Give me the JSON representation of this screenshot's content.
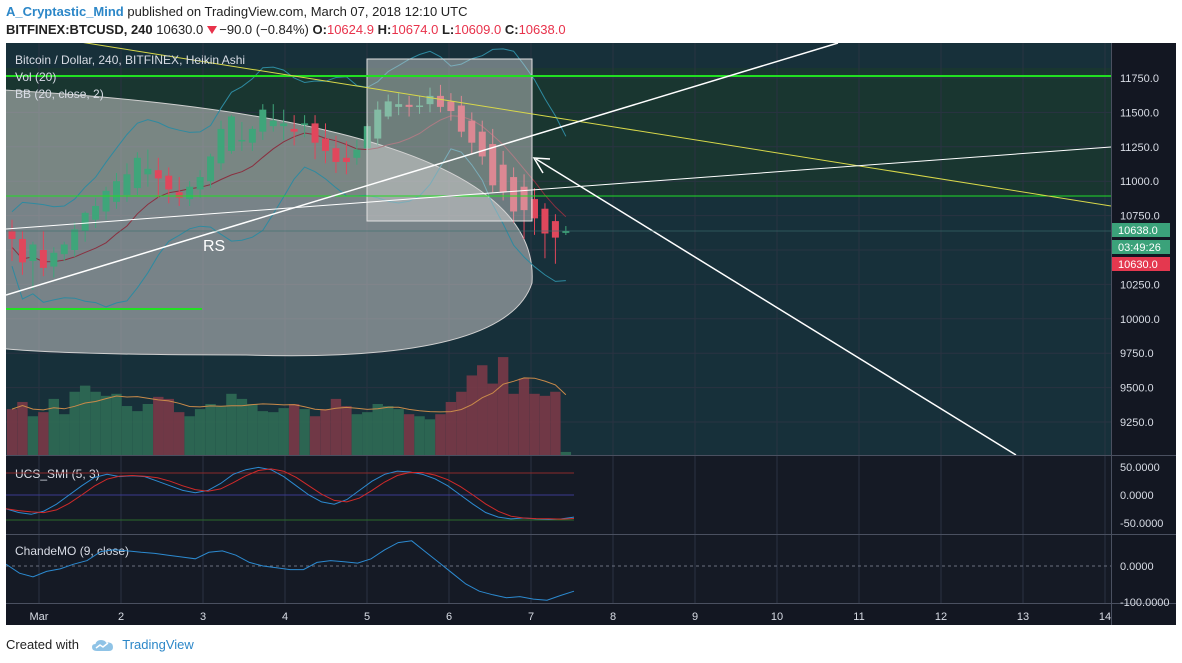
{
  "header": {
    "author": "A_Cryptastic_Mind",
    "published_text": "published on TradingView.com, March 07, 2018 12:10 UTC",
    "symbol": "BITFINEX:BTCUSD, 240",
    "last_price": "10630.0",
    "change": "−90.0 (−0.84%)",
    "o_label": "O:",
    "o_value": "10624.9",
    "h_label": "H:",
    "h_value": "10674.0",
    "l_label": "L:",
    "l_value": "10609.0",
    "c_label": "C:",
    "c_value": "10638.0"
  },
  "legend": {
    "main": "Bitcoin / Dollar, 240, BITFINEX, Heikin Ashi",
    "vol": "Vol (20)",
    "bb": "BB (20, close, 2)",
    "smi": "UCS_SMI (5, 3)",
    "cmo": "ChandeMO (9, close)"
  },
  "annotation": {
    "rs": "RS"
  },
  "price_axis": [
    "11750.0",
    "11500.0",
    "11250.0",
    "11000.0",
    "10750.0",
    "10250.0",
    "10000.0",
    "9750.0",
    "9500.0",
    "9250.0"
  ],
  "price_badges": {
    "close": "10638.0",
    "countdown": "03:49:26",
    "last": "10630.0"
  },
  "smi_axis": [
    "50.0000",
    "0.0000",
    "-50.0000"
  ],
  "cmo_axis": [
    "0.0000",
    "-100.0000"
  ],
  "time_axis": [
    "Mar",
    "2",
    "3",
    "4",
    "5",
    "6",
    "7",
    "8",
    "9",
    "10",
    "11",
    "12",
    "13",
    "14"
  ],
  "colors": {
    "background": "#131722",
    "up": "#3fa57a",
    "down": "#e0475c",
    "green_line": "#21e021",
    "yellow_line": "#d8d84a",
    "badge_green": "#3ba27a",
    "badge_red": "#e4384f"
  },
  "footer": {
    "created_with": "Created with",
    "brand": "TradingView"
  },
  "chart_data": {
    "type": "candlestick",
    "title": "Bitcoin / Dollar, 240, BITFINEX, Heikin Ashi",
    "y_range": [
      9100,
      11950
    ],
    "candles": [
      {
        "o": 10640,
        "h": 10720,
        "c": 10580,
        "l": 10420
      },
      {
        "o": 10580,
        "h": 10640,
        "c": 10410,
        "l": 10320
      },
      {
        "o": 10420,
        "h": 10560,
        "c": 10540,
        "l": 10210
      },
      {
        "o": 10500,
        "h": 10640,
        "c": 10370,
        "l": 10310
      },
      {
        "o": 10380,
        "h": 10520,
        "c": 10480,
        "l": 10300
      },
      {
        "o": 10470,
        "h": 10560,
        "c": 10540,
        "l": 10420
      },
      {
        "o": 10500,
        "h": 10700,
        "c": 10650,
        "l": 10450
      },
      {
        "o": 10640,
        "h": 10780,
        "c": 10770,
        "l": 10560
      },
      {
        "o": 10720,
        "h": 10880,
        "c": 10820,
        "l": 10660
      },
      {
        "o": 10780,
        "h": 10960,
        "c": 10930,
        "l": 10720
      },
      {
        "o": 10850,
        "h": 11060,
        "c": 11000,
        "l": 10800
      },
      {
        "o": 10900,
        "h": 11130,
        "c": 11050,
        "l": 10850
      },
      {
        "o": 10950,
        "h": 11210,
        "c": 11170,
        "l": 10900
      },
      {
        "o": 11050,
        "h": 11230,
        "c": 11090,
        "l": 10960
      },
      {
        "o": 11080,
        "h": 11170,
        "c": 11020,
        "l": 10880
      },
      {
        "o": 11040,
        "h": 11100,
        "c": 10940,
        "l": 10840
      },
      {
        "o": 10920,
        "h": 11030,
        "c": 10880,
        "l": 10820
      },
      {
        "o": 10870,
        "h": 11000,
        "c": 10960,
        "l": 10820
      },
      {
        "o": 10940,
        "h": 11080,
        "c": 11030,
        "l": 10880
      },
      {
        "o": 11000,
        "h": 11200,
        "c": 11180,
        "l": 10950
      },
      {
        "o": 11130,
        "h": 11440,
        "c": 11380,
        "l": 11080
      },
      {
        "o": 11220,
        "h": 11480,
        "c": 11470,
        "l": 11200
      },
      {
        "o": 11300,
        "h": 11430,
        "c": 11300,
        "l": 11220
      },
      {
        "o": 11280,
        "h": 11400,
        "c": 11380,
        "l": 11220
      },
      {
        "o": 11360,
        "h": 11560,
        "c": 11520,
        "l": 11300
      },
      {
        "o": 11400,
        "h": 11560,
        "c": 11440,
        "l": 11360
      },
      {
        "o": 11400,
        "h": 11520,
        "c": 11420,
        "l": 11300
      },
      {
        "o": 11380,
        "h": 11480,
        "c": 11360,
        "l": 11260
      },
      {
        "o": 11410,
        "h": 11480,
        "c": 11420,
        "l": 11320
      },
      {
        "o": 11420,
        "h": 11480,
        "c": 11280,
        "l": 11160
      },
      {
        "o": 11310,
        "h": 11420,
        "c": 11220,
        "l": 11130
      },
      {
        "o": 11240,
        "h": 11330,
        "c": 11140,
        "l": 11060
      },
      {
        "o": 11170,
        "h": 11290,
        "c": 11140,
        "l": 11050
      },
      {
        "o": 11170,
        "h": 11300,
        "c": 11230,
        "l": 11120
      },
      {
        "o": 11240,
        "h": 11420,
        "c": 11400,
        "l": 11200
      },
      {
        "o": 11310,
        "h": 11580,
        "c": 11520,
        "l": 11260
      },
      {
        "o": 11470,
        "h": 11630,
        "c": 11580,
        "l": 11450
      },
      {
        "o": 11540,
        "h": 11640,
        "c": 11560,
        "l": 11480
      },
      {
        "o": 11555,
        "h": 11620,
        "c": 11540,
        "l": 11470
      },
      {
        "o": 11545,
        "h": 11620,
        "c": 11550,
        "l": 11490
      },
      {
        "o": 11560,
        "h": 11680,
        "c": 11620,
        "l": 11500
      },
      {
        "o": 11620,
        "h": 11700,
        "c": 11540,
        "l": 11500
      },
      {
        "o": 11580,
        "h": 11640,
        "c": 11510,
        "l": 11440
      },
      {
        "o": 11550,
        "h": 11620,
        "c": 11360,
        "l": 11320
      },
      {
        "o": 11440,
        "h": 11500,
        "c": 11280,
        "l": 11200
      },
      {
        "o": 11360,
        "h": 11440,
        "c": 11180,
        "l": 11120
      },
      {
        "o": 11270,
        "h": 11380,
        "c": 10970,
        "l": 10920
      },
      {
        "o": 11120,
        "h": 11220,
        "c": 10920,
        "l": 10860
      },
      {
        "o": 11030,
        "h": 11100,
        "c": 10780,
        "l": 10700
      },
      {
        "o": 10960,
        "h": 11050,
        "c": 10790,
        "l": 10580
      },
      {
        "o": 10870,
        "h": 10950,
        "c": 10730,
        "l": 10610
      },
      {
        "o": 10800,
        "h": 10840,
        "c": 10620,
        "l": 10440
      },
      {
        "o": 10710,
        "h": 10760,
        "c": 10590,
        "l": 10400
      },
      {
        "o": 10624.9,
        "h": 10674,
        "c": 10638,
        "l": 10609
      }
    ],
    "volume": [
      0.45,
      0.52,
      0.38,
      0.42,
      0.55,
      0.4,
      0.62,
      0.68,
      0.62,
      0.58,
      0.6,
      0.48,
      0.43,
      0.5,
      0.57,
      0.55,
      0.42,
      0.38,
      0.45,
      0.5,
      0.48,
      0.6,
      0.55,
      0.5,
      0.43,
      0.42,
      0.46,
      0.5,
      0.45,
      0.38,
      0.45,
      0.55,
      0.48,
      0.4,
      0.42,
      0.5,
      0.48,
      0.45,
      0.4,
      0.38,
      0.35,
      0.4,
      0.52,
      0.62,
      0.78,
      0.88,
      0.7,
      0.96,
      0.6,
      0.75,
      0.6,
      0.58,
      0.62,
      0.03
    ],
    "smi": [
      -30,
      -38,
      -42,
      -35,
      -20,
      0,
      20,
      38,
      45,
      40,
      42,
      40,
      30,
      20,
      10,
      5,
      10,
      25,
      45,
      55,
      60,
      55,
      40,
      20,
      0,
      -15,
      -20,
      -10,
      10,
      30,
      45,
      52,
      50,
      45,
      35,
      20,
      0,
      -20,
      -38,
      -48,
      -52,
      -50,
      -52,
      -53,
      -52,
      -48
    ],
    "cmo": [
      5,
      -20,
      -30,
      -15,
      -8,
      5,
      15,
      40,
      45,
      42,
      38,
      35,
      30,
      25,
      20,
      38,
      42,
      30,
      10,
      0,
      -5,
      -10,
      -10,
      10,
      15,
      12,
      8,
      20,
      45,
      65,
      70,
      40,
      10,
      -20,
      -50,
      -70,
      -80,
      -88,
      -85,
      -92,
      -95,
      -82,
      -70
    ],
    "time_labels": [
      "Mar",
      "2",
      "3",
      "4",
      "5",
      "6",
      "7",
      "8",
      "9",
      "10",
      "11",
      "12",
      "13",
      "14"
    ]
  }
}
